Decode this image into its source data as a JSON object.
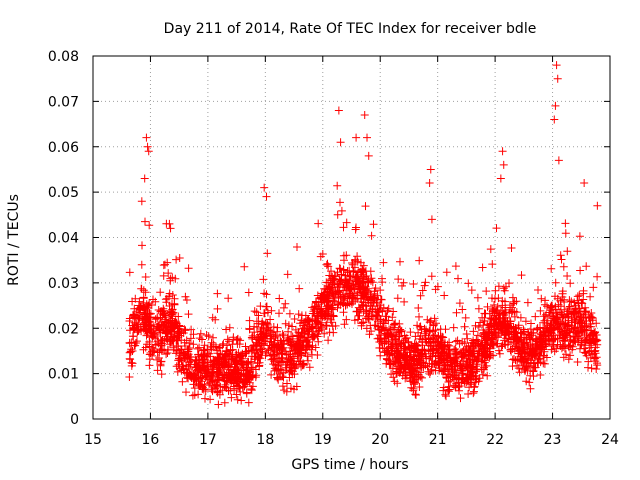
{
  "chart_data": {
    "type": "scatter",
    "title": "Day 211 of 2014, Rate Of TEC Index for receiver bdle",
    "xlabel": "GPS time / hours",
    "ylabel": "ROTI / TECUs",
    "xlim": [
      15,
      24
    ],
    "ylim": [
      0,
      0.08
    ],
    "x_ticks": [
      "15",
      "16",
      "17",
      "18",
      "19",
      "20",
      "21",
      "22",
      "23",
      "24"
    ],
    "y_ticks": [
      "0",
      "0.01",
      "0.02",
      "0.03",
      "0.04",
      "0.05",
      "0.06",
      "0.07",
      "0.08"
    ],
    "grid": true,
    "marker": "+",
    "color": "#ff0000",
    "x_range_of_data": [
      15.63,
      23.78
    ],
    "note": "several thousand points; density approximated by a seeded generator",
    "series": [
      {
        "name": "ROTI",
        "highlight_points": [
          {
            "x": 15.93,
            "y": 0.062
          },
          {
            "x": 15.95,
            "y": 0.06
          },
          {
            "x": 15.97,
            "y": 0.059
          },
          {
            "x": 15.9,
            "y": 0.053
          },
          {
            "x": 15.85,
            "y": 0.048
          },
          {
            "x": 16.33,
            "y": 0.043
          },
          {
            "x": 16.35,
            "y": 0.042
          },
          {
            "x": 17.98,
            "y": 0.051
          },
          {
            "x": 18.02,
            "y": 0.049
          },
          {
            "x": 19.28,
            "y": 0.068
          },
          {
            "x": 19.31,
            "y": 0.061
          },
          {
            "x": 19.58,
            "y": 0.062
          },
          {
            "x": 19.73,
            "y": 0.067
          },
          {
            "x": 19.77,
            "y": 0.062
          },
          {
            "x": 19.8,
            "y": 0.058
          },
          {
            "x": 20.88,
            "y": 0.055
          },
          {
            "x": 20.86,
            "y": 0.052
          },
          {
            "x": 20.9,
            "y": 0.044
          },
          {
            "x": 22.13,
            "y": 0.059
          },
          {
            "x": 22.15,
            "y": 0.056
          },
          {
            "x": 22.1,
            "y": 0.053
          },
          {
            "x": 23.07,
            "y": 0.078
          },
          {
            "x": 23.09,
            "y": 0.075
          },
          {
            "x": 23.05,
            "y": 0.069
          },
          {
            "x": 23.03,
            "y": 0.066
          },
          {
            "x": 23.11,
            "y": 0.057
          },
          {
            "x": 23.55,
            "y": 0.052
          },
          {
            "x": 23.78,
            "y": 0.047
          }
        ]
      }
    ]
  }
}
